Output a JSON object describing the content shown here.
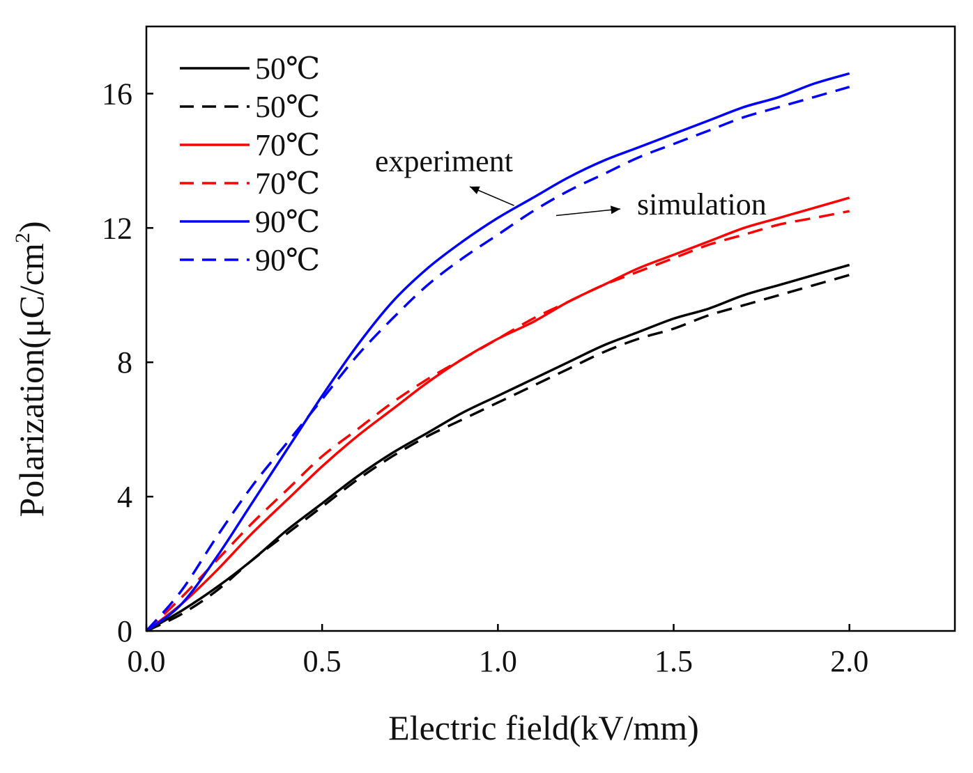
{
  "chart_data": {
    "type": "line",
    "title": "",
    "xlabel": "Electric field(kV/mm)",
    "ylabel": "Polarization(μC/cm²)",
    "ylabel_main": "Polarization(μC/cm",
    "ylabel_sup": "2",
    "ylabel_tail": ")",
    "xlim": [
      0.0,
      2.3
    ],
    "ylim": [
      0,
      18
    ],
    "xticks": [
      "0.0",
      "0.5",
      "1.0",
      "1.5",
      "2.0"
    ],
    "yticks": [
      "0",
      "4",
      "8",
      "12",
      "16"
    ],
    "legend_position": "top-left",
    "grid": false,
    "x": [
      0.0,
      0.1,
      0.2,
      0.3,
      0.4,
      0.5,
      0.6,
      0.7,
      0.8,
      0.9,
      1.0,
      1.1,
      1.2,
      1.3,
      1.4,
      1.5,
      1.6,
      1.7,
      1.8,
      1.9,
      2.0
    ],
    "series": [
      {
        "name": "50℃",
        "label": "50℃",
        "style": "solid",
        "color": "#000000",
        "values": [
          0.0,
          0.6,
          1.3,
          2.1,
          3.0,
          3.8,
          4.6,
          5.3,
          5.9,
          6.5,
          7.0,
          7.5,
          8.0,
          8.5,
          8.9,
          9.3,
          9.6,
          10.0,
          10.3,
          10.6,
          10.9
        ]
      },
      {
        "name": "50℃",
        "label": "50℃",
        "style": "dashed",
        "color": "#000000",
        "values": [
          0.0,
          0.5,
          1.2,
          2.1,
          2.9,
          3.7,
          4.5,
          5.2,
          5.8,
          6.3,
          6.8,
          7.3,
          7.8,
          8.3,
          8.7,
          9.0,
          9.4,
          9.7,
          10.0,
          10.3,
          10.6
        ]
      },
      {
        "name": "70℃",
        "label": "70℃",
        "style": "solid",
        "color": "#ff0000",
        "values": [
          0.0,
          0.8,
          1.8,
          2.9,
          3.9,
          4.9,
          5.8,
          6.6,
          7.4,
          8.1,
          8.7,
          9.2,
          9.8,
          10.3,
          10.8,
          11.2,
          11.6,
          12.0,
          12.3,
          12.6,
          12.9
        ]
      },
      {
        "name": "70℃",
        "label": "70℃",
        "style": "dashed",
        "color": "#ff0000",
        "values": [
          0.0,
          1.0,
          2.1,
          3.2,
          4.2,
          5.2,
          6.0,
          6.8,
          7.5,
          8.1,
          8.7,
          9.3,
          9.8,
          10.3,
          10.7,
          11.1,
          11.5,
          11.8,
          12.1,
          12.3,
          12.5
        ]
      },
      {
        "name": "90℃",
        "label": "90℃",
        "style": "solid",
        "color": "#0000ff",
        "values": [
          0.0,
          0.8,
          2.2,
          3.8,
          5.4,
          7.0,
          8.5,
          9.8,
          10.8,
          11.6,
          12.3,
          12.9,
          13.5,
          14.0,
          14.4,
          14.8,
          15.2,
          15.6,
          15.9,
          16.3,
          16.6
        ]
      },
      {
        "name": "90℃",
        "label": "90℃",
        "style": "dashed",
        "color": "#0000ff",
        "values": [
          0.0,
          1.2,
          2.8,
          4.3,
          5.6,
          6.9,
          8.2,
          9.3,
          10.3,
          11.1,
          11.8,
          12.5,
          13.1,
          13.6,
          14.1,
          14.5,
          14.9,
          15.3,
          15.6,
          15.9,
          16.2
        ]
      }
    ],
    "annotations": [
      {
        "text": "experiment",
        "x": 0.77,
        "y": 13.8,
        "points_to_x": 1.05,
        "points_to_y": 12.5
      },
      {
        "text": "simulation",
        "x": 1.8,
        "y": 12.6,
        "points_to_x": 1.15,
        "points_to_y": 12.35
      }
    ]
  }
}
